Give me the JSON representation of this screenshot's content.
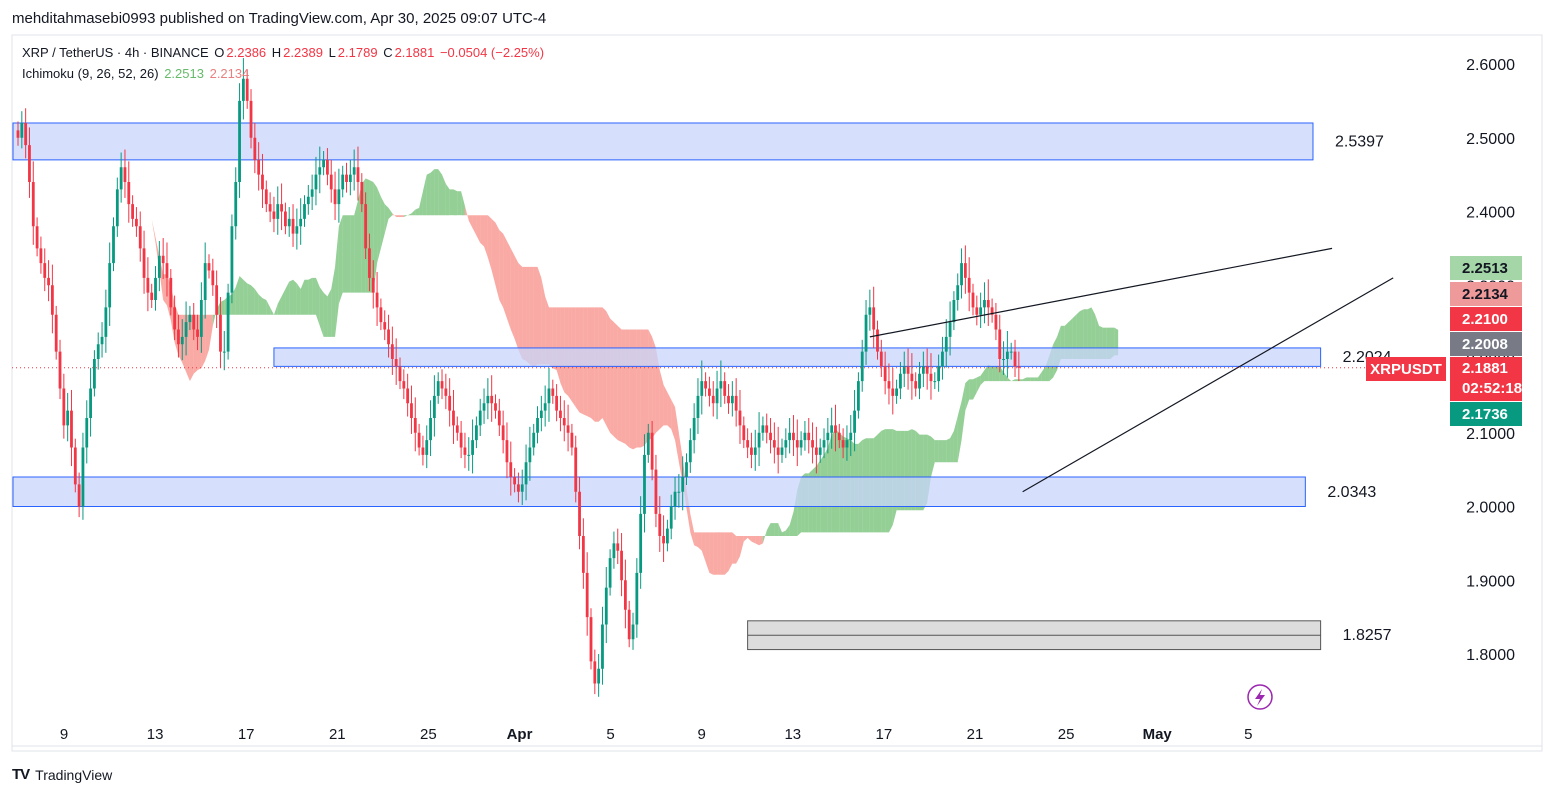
{
  "header": {
    "publisher": "mehditahmasebi0993 published on TradingView.com, Apr 30, 2025 09:07 UTC-4"
  },
  "legend": {
    "symbol": "XRP / TetherUS · 4h · BINANCE",
    "o_label": "O",
    "o": "2.2386",
    "h_label": "H",
    "h": "2.2389",
    "l_label": "L",
    "l": "2.1789",
    "c_label": "C",
    "c": "2.1881",
    "change": "−0.0504 (−2.25%)",
    "indicator": "Ichimoku (9, 26, 52, 26)",
    "ind_v1": "2.2513",
    "ind_v2": "2.2134"
  },
  "footer": {
    "brand": "TradingView"
  },
  "tags": {
    "t1": "2.2513",
    "t2": "2.2134",
    "t3": "2.2100",
    "t4": "2.2008",
    "t5": "2.1881",
    "t5b": "02:52:18",
    "t6": "2.1736",
    "symbol": "XRPUSDT"
  },
  "colors": {
    "up": "#089981",
    "down": "#f23645",
    "kumo_bull": "#4caf50",
    "kumo_bear": "#f44336",
    "zone_blue": "#c8d6fb",
    "zone_border": "#2962ff",
    "zone_gray": "#d3d3d3",
    "price_line": "#f23645"
  },
  "chart_data": {
    "type": "candlestick",
    "title": "XRP / TetherUS · 4h · BINANCE",
    "ylim": [
      1.74,
      2.63
    ],
    "y_ticks": [
      "2.6000",
      "2.5000",
      "2.4000",
      "2.3000",
      "2.2000",
      "2.1000",
      "2.0000",
      "1.9000",
      "1.8000"
    ],
    "y_tick_values": [
      2.6,
      2.5,
      2.4,
      2.3,
      2.2,
      2.1,
      2.0,
      1.9,
      1.8
    ],
    "x_ticks": [
      "9",
      "13",
      "17",
      "21",
      "25",
      "Apr",
      "5",
      "9",
      "13",
      "17",
      "21",
      "25",
      "May",
      "5"
    ],
    "x_tick_index": [
      4,
      28,
      52,
      76,
      100,
      124,
      148,
      172,
      196,
      220,
      244,
      268,
      292,
      316
    ],
    "last_price": 2.1881,
    "zones": [
      {
        "name": "resistance",
        "low": 2.47,
        "high": 2.52,
        "label": "2.5397",
        "start": 0,
        "end": 339,
        "style": "blue"
      },
      {
        "name": "mid",
        "low": 2.19,
        "high": 2.215,
        "label": "2.2024",
        "start": 67,
        "end": 341,
        "style": "blue"
      },
      {
        "name": "support",
        "low": 2.0,
        "high": 2.04,
        "label": "2.0343",
        "start": 0,
        "end": 337,
        "style": "blue"
      },
      {
        "name": "low",
        "low": 1.806,
        "high": 1.845,
        "label": "1.8257",
        "start": 191,
        "end": 341,
        "style": "gray"
      }
    ],
    "trendlines": [
      {
        "x1": 223,
        "y1": 2.23,
        "x2": 344,
        "y2": 2.35
      },
      {
        "x1": 263,
        "y1": 2.02,
        "x2": 360,
        "y2": 2.31
      }
    ],
    "closes": [
      2.5,
      2.52,
      2.49,
      2.44,
      2.38,
      2.35,
      2.33,
      2.31,
      2.3,
      2.26,
      2.21,
      2.16,
      2.11,
      2.13,
      2.08,
      2.03,
      2.0,
      2.08,
      2.12,
      2.16,
      2.2,
      2.22,
      2.23,
      2.27,
      2.33,
      2.38,
      2.43,
      2.46,
      2.44,
      2.41,
      2.39,
      2.38,
      2.35,
      2.31,
      2.29,
      2.28,
      2.31,
      2.34,
      2.33,
      2.31,
      2.27,
      2.24,
      2.22,
      2.23,
      2.25,
      2.26,
      2.24,
      2.23,
      2.28,
      2.33,
      2.32,
      2.3,
      2.26,
      2.21,
      2.21,
      2.29,
      2.38,
      2.44,
      2.55,
      2.58,
      2.55,
      2.5,
      2.47,
      2.45,
      2.43,
      2.41,
      2.4,
      2.39,
      2.41,
      2.4,
      2.38,
      2.39,
      2.37,
      2.38,
      2.39,
      2.41,
      2.42,
      2.43,
      2.45,
      2.46,
      2.47,
      2.45,
      2.43,
      2.41,
      2.43,
      2.45,
      2.44,
      2.45,
      2.46,
      2.44,
      2.41,
      2.35,
      2.31,
      2.29,
      2.27,
      2.25,
      2.24,
      2.22,
      2.2,
      2.19,
      2.17,
      2.16,
      2.14,
      2.12,
      2.1,
      2.08,
      2.07,
      2.09,
      2.12,
      2.15,
      2.17,
      2.16,
      2.15,
      2.13,
      2.11,
      2.1,
      2.08,
      2.07,
      2.07,
      2.09,
      2.11,
      2.13,
      2.14,
      2.15,
      2.14,
      2.13,
      2.11,
      2.09,
      2.06,
      2.04,
      2.03,
      2.02,
      2.03,
      2.06,
      2.08,
      2.1,
      2.12,
      2.13,
      2.14,
      2.16,
      2.15,
      2.13,
      2.12,
      2.11,
      2.1,
      2.08,
      2.02,
      1.96,
      1.91,
      1.85,
      1.79,
      1.76,
      1.78,
      1.84,
      1.89,
      1.93,
      1.95,
      1.94,
      1.9,
      1.86,
      1.82,
      1.84,
      1.91,
      1.99,
      2.07,
      2.1,
      2.05,
      1.99,
      1.96,
      1.95,
      1.97,
      2.0,
      2.02,
      2.02,
      2.04,
      2.06,
      2.09,
      2.12,
      2.15,
      2.17,
      2.16,
      2.15,
      2.14,
      2.16,
      2.17,
      2.15,
      2.14,
      2.15,
      2.13,
      2.11,
      2.09,
      2.08,
      2.07,
      2.08,
      2.1,
      2.11,
      2.1,
      2.09,
      2.08,
      2.07,
      2.08,
      2.09,
      2.1,
      2.09,
      2.08,
      2.09,
      2.1,
      2.09,
      2.08,
      2.07,
      2.08,
      2.09,
      2.1,
      2.11,
      2.1,
      2.09,
      2.08,
      2.09,
      2.1,
      2.13,
      2.17,
      2.21,
      2.26,
      2.27,
      2.24,
      2.21,
      2.19,
      2.17,
      2.16,
      2.15,
      2.16,
      2.18,
      2.19,
      2.18,
      2.17,
      2.16,
      2.18,
      2.19,
      2.18,
      2.17,
      2.17,
      2.19,
      2.21,
      2.23,
      2.25,
      2.28,
      2.3,
      2.33,
      2.31,
      2.29,
      2.27,
      2.26,
      2.27,
      2.28,
      2.27,
      2.26,
      2.24,
      2.2,
      2.2,
      2.21,
      2.21,
      2.19,
      2.1881
    ]
  }
}
